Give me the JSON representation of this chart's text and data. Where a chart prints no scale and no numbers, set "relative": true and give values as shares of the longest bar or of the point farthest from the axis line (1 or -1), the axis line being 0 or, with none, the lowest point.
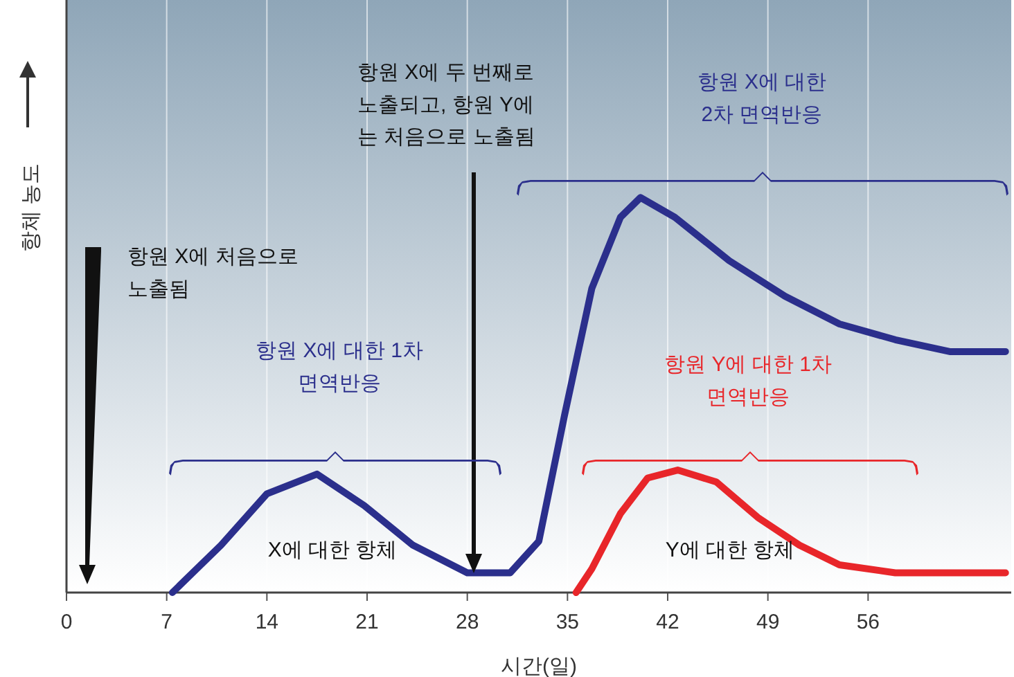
{
  "chart_data": {
    "type": "line",
    "relative": true,
    "xlabel": "시간(일)",
    "ylabel": "항체 농도",
    "xlim": [
      0,
      66
    ],
    "xticks": [
      0,
      7,
      14,
      21,
      28,
      35,
      42,
      49,
      56
    ],
    "grid": "x",
    "series": [
      {
        "name": "X에 대한 항체",
        "color": "#2b2f8c",
        "x": [
          7.4,
          10.8,
          14,
          17.5,
          20.8,
          24.2,
          28,
          31,
          33,
          34.8,
          36.7,
          38.7,
          40.1,
          42.5,
          46.3,
          50.2,
          54,
          57.9,
          61.7,
          65.6
        ],
        "values": [
          0,
          0.12,
          0.25,
          0.3,
          0.22,
          0.12,
          0.05,
          0.05,
          0.13,
          0.45,
          0.77,
          0.95,
          1,
          0.95,
          0.84,
          0.75,
          0.68,
          0.64,
          0.61,
          0.61
        ]
      },
      {
        "name": "Y에 대한 항체",
        "color": "#e8262a",
        "x": [
          35.6,
          36.7,
          38.7,
          40.6,
          42.7,
          45.4,
          48.3,
          51.2,
          54,
          57.9,
          65.6
        ],
        "values": [
          0,
          0.06,
          0.2,
          0.29,
          0.31,
          0.28,
          0.19,
          0.12,
          0.07,
          0.05,
          0.05
        ]
      }
    ],
    "annotations": [
      "항원 X에 처음으로\n노출됨",
      "항원 X에 두 번째로\n노출되고, 항원 Y에\n는 처음으로 노출됨",
      "항원 X에 대한\n2차 면역반응",
      "항원 X에 대한 1차\n면역반응",
      "항원 Y에 대한 1차\n면역반응"
    ]
  }
}
